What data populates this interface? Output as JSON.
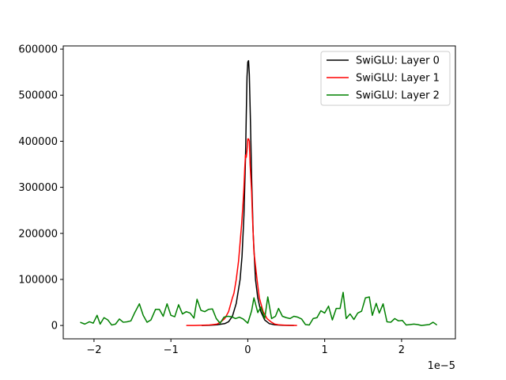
{
  "chart_data": {
    "type": "line",
    "title": "",
    "xlabel": "",
    "ylabel": "",
    "x_offset_text": "1e−5",
    "x_scale": 1e-05,
    "xlim": [
      -2.4,
      2.7
    ],
    "ylim": [
      -29000,
      607000
    ],
    "grid": false,
    "legend_position": "top-right",
    "x_ticks": [
      {
        "value": -2,
        "label": "−2"
      },
      {
        "value": -1,
        "label": "−1"
      },
      {
        "value": 0,
        "label": "0"
      },
      {
        "value": 1,
        "label": "1"
      },
      {
        "value": 2,
        "label": "2"
      }
    ],
    "y_ticks": [
      {
        "value": 0,
        "label": "0"
      },
      {
        "value": 100000,
        "label": "100000"
      },
      {
        "value": 200000,
        "label": "200000"
      },
      {
        "value": 300000,
        "label": "300000"
      },
      {
        "value": 400000,
        "label": "400000"
      },
      {
        "value": 500000,
        "label": "500000"
      },
      {
        "value": 600000,
        "label": "600000"
      }
    ],
    "series": [
      {
        "name": "SwiGLU: Layer 0",
        "color": "#000000",
        "points": [
          [
            -0.6,
            0
          ],
          [
            -0.5,
            500
          ],
          [
            -0.4,
            1500
          ],
          [
            -0.3,
            4000
          ],
          [
            -0.25,
            8000
          ],
          [
            -0.2,
            20000
          ],
          [
            -0.15,
            48000
          ],
          [
            -0.1,
            100000
          ],
          [
            -0.075,
            150000
          ],
          [
            -0.05,
            240000
          ],
          [
            -0.03,
            360000
          ],
          [
            -0.02,
            455000
          ],
          [
            -0.01,
            540000
          ],
          [
            0,
            572000
          ],
          [
            0.01,
            575000
          ],
          [
            0.02,
            545000
          ],
          [
            0.035,
            440000
          ],
          [
            0.05,
            320000
          ],
          [
            0.07,
            200000
          ],
          [
            0.1,
            100000
          ],
          [
            0.13,
            60000
          ],
          [
            0.17,
            30000
          ],
          [
            0.22,
            12000
          ],
          [
            0.28,
            4000
          ],
          [
            0.35,
            1500
          ],
          [
            0.45,
            500
          ],
          [
            0.6,
            0
          ]
        ]
      },
      {
        "name": "SwiGLU: Layer 1",
        "color": "#ff0000",
        "points": [
          [
            -0.8,
            0
          ],
          [
            -0.7,
            0
          ],
          [
            -0.6,
            500
          ],
          [
            -0.5,
            1000
          ],
          [
            -0.45,
            2000
          ],
          [
            -0.4,
            3000
          ],
          [
            -0.35,
            8000
          ],
          [
            -0.3,
            15000
          ],
          [
            -0.25,
            30000
          ],
          [
            -0.2,
            60000
          ],
          [
            -0.18,
            70000
          ],
          [
            -0.15,
            100000
          ],
          [
            -0.12,
            140000
          ],
          [
            -0.1,
            180000
          ],
          [
            -0.08,
            220000
          ],
          [
            -0.06,
            270000
          ],
          [
            -0.05,
            300000
          ],
          [
            -0.04,
            340000
          ],
          [
            -0.03,
            370000
          ],
          [
            -0.02,
            365000
          ],
          [
            -0.01,
            380000
          ],
          [
            0,
            405000
          ],
          [
            0.01,
            405000
          ],
          [
            0.02,
            400000
          ],
          [
            0.03,
            350000
          ],
          [
            0.04,
            320000
          ],
          [
            0.05,
            290000
          ],
          [
            0.06,
            240000
          ],
          [
            0.07,
            200000
          ],
          [
            0.08,
            160000
          ],
          [
            0.1,
            130000
          ],
          [
            0.12,
            100000
          ],
          [
            0.15,
            60000
          ],
          [
            0.2,
            30000
          ],
          [
            0.25,
            15000
          ],
          [
            0.3,
            8000
          ],
          [
            0.35,
            3000
          ],
          [
            0.4,
            1500
          ],
          [
            0.5,
            500
          ],
          [
            0.64,
            0
          ]
        ]
      },
      {
        "name": "SwiGLU: Layer 2",
        "color": "#008000",
        "points": [
          [
            -2.18,
            7000
          ],
          [
            -2.12,
            3000
          ],
          [
            -2.06,
            8000
          ],
          [
            -2.01,
            5000
          ],
          [
            -1.96,
            22000
          ],
          [
            -1.92,
            3000
          ],
          [
            -1.87,
            17000
          ],
          [
            -1.82,
            12000
          ],
          [
            -1.77,
            1000
          ],
          [
            -1.72,
            3000
          ],
          [
            -1.67,
            14000
          ],
          [
            -1.62,
            7000
          ],
          [
            -1.57,
            8000
          ],
          [
            -1.52,
            10000
          ],
          [
            -1.47,
            28000
          ],
          [
            -1.41,
            47000
          ],
          [
            -1.36,
            22000
          ],
          [
            -1.31,
            7000
          ],
          [
            -1.26,
            12000
          ],
          [
            -1.2,
            35000
          ],
          [
            -1.15,
            35000
          ],
          [
            -1.1,
            20000
          ],
          [
            -1.05,
            47000
          ],
          [
            -1.0,
            22000
          ],
          [
            -0.95,
            19000
          ],
          [
            -0.9,
            45000
          ],
          [
            -0.85,
            25000
          ],
          [
            -0.8,
            30000
          ],
          [
            -0.75,
            27000
          ],
          [
            -0.7,
            16000
          ],
          [
            -0.66,
            57000
          ],
          [
            -0.61,
            33000
          ],
          [
            -0.56,
            30000
          ],
          [
            -0.51,
            35000
          ],
          [
            -0.46,
            36000
          ],
          [
            -0.41,
            15000
          ],
          [
            -0.36,
            5000
          ],
          [
            -0.31,
            18000
          ],
          [
            -0.26,
            20000
          ],
          [
            -0.21,
            19000
          ],
          [
            -0.16,
            15000
          ],
          [
            -0.11,
            18000
          ],
          [
            -0.06,
            14000
          ],
          [
            0.0,
            5000
          ],
          [
            0.05,
            32000
          ],
          [
            0.08,
            60000
          ],
          [
            0.13,
            28000
          ],
          [
            0.17,
            40000
          ],
          [
            0.22,
            15000
          ],
          [
            0.26,
            62000
          ],
          [
            0.31,
            15000
          ],
          [
            0.36,
            20000
          ],
          [
            0.4,
            37000
          ],
          [
            0.45,
            20000
          ],
          [
            0.5,
            17000
          ],
          [
            0.55,
            15000
          ],
          [
            0.6,
            20000
          ],
          [
            0.65,
            18000
          ],
          [
            0.7,
            14000
          ],
          [
            0.75,
            2000
          ],
          [
            0.8,
            1000
          ],
          [
            0.85,
            15000
          ],
          [
            0.9,
            17000
          ],
          [
            0.95,
            32000
          ],
          [
            1.0,
            27000
          ],
          [
            1.05,
            42000
          ],
          [
            1.1,
            12000
          ],
          [
            1.15,
            37000
          ],
          [
            1.2,
            37000
          ],
          [
            1.24,
            72000
          ],
          [
            1.28,
            15000
          ],
          [
            1.33,
            25000
          ],
          [
            1.38,
            13000
          ],
          [
            1.43,
            27000
          ],
          [
            1.48,
            31000
          ],
          [
            1.53,
            60000
          ],
          [
            1.58,
            62000
          ],
          [
            1.62,
            22000
          ],
          [
            1.67,
            48000
          ],
          [
            1.71,
            27000
          ],
          [
            1.76,
            47000
          ],
          [
            1.81,
            8000
          ],
          [
            1.86,
            7000
          ],
          [
            1.91,
            15000
          ],
          [
            1.96,
            10000
          ],
          [
            2.01,
            11000
          ],
          [
            2.06,
            1000
          ],
          [
            2.11,
            2000
          ],
          [
            2.16,
            3000
          ],
          [
            2.21,
            2000
          ],
          [
            2.26,
            0
          ],
          [
            2.31,
            1000
          ],
          [
            2.36,
            2000
          ],
          [
            2.41,
            7000
          ],
          [
            2.46,
            1000
          ]
        ]
      }
    ]
  }
}
